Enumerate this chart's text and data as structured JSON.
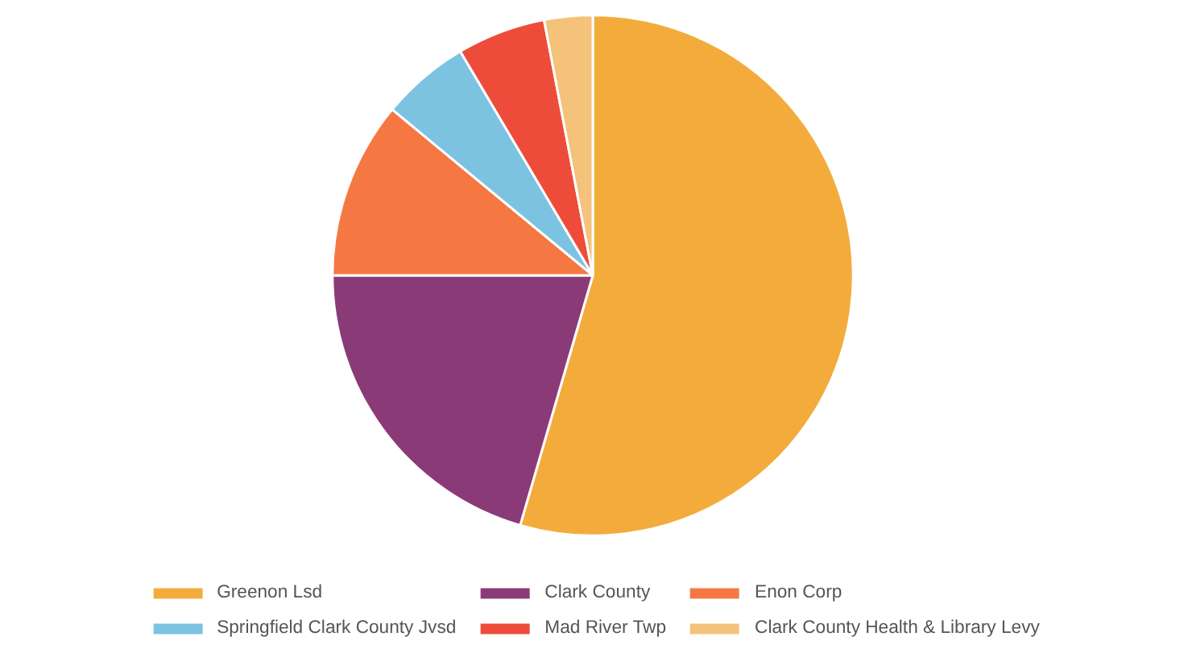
{
  "chart_data": {
    "type": "pie",
    "categories": [
      "Greenon Lsd",
      "Clark County",
      "Enon Corp",
      "Springfield Clark County Jvsd",
      "Mad River Twp",
      "Clark County Health & Library Levy"
    ],
    "values": [
      54.5,
      20.5,
      11,
      5.5,
      5.5,
      3
    ],
    "colors": [
      "#f3ac3c",
      "#8b3a78",
      "#f57843",
      "#7cc3e2",
      "#ee4c3a",
      "#f4c27a"
    ],
    "legend": "bottom"
  }
}
